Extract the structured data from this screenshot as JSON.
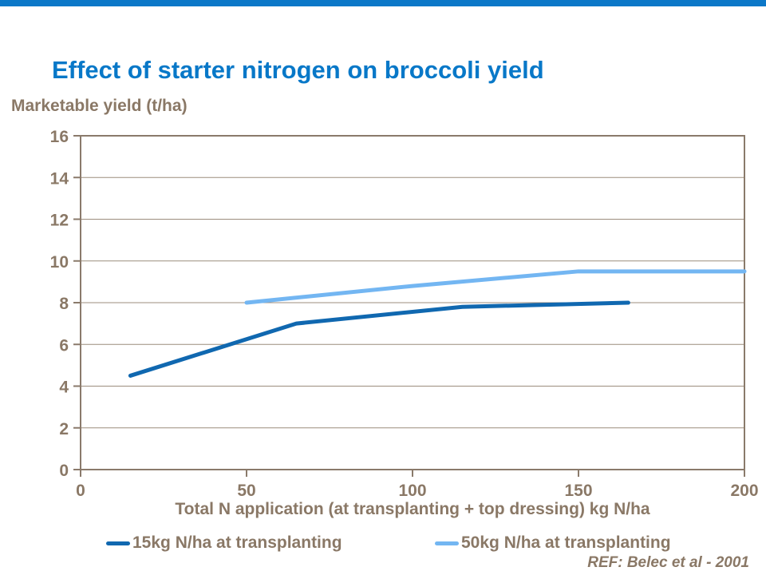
{
  "page": {
    "background": "#ffffff",
    "top_bar_color": "#0c78c8"
  },
  "colors": {
    "title_blue": "#0878c8",
    "axis": "#8a7a6b",
    "grid": "#9c8d7d",
    "text_brown": "#8a7866",
    "series_dark_blue": "#1068b0",
    "series_light_blue": "#73b6f2"
  },
  "title": {
    "text": "Effect of starter nitrogen on broccoli yield"
  },
  "ref_note": {
    "text": "REF: Belec et al - 2001"
  },
  "chart_data": {
    "type": "line",
    "title": "Effect of starter nitrogen on broccoli yield",
    "ylabel": "Marketable yield (t/ha)",
    "xlabel": "Total N application (at transplanting + top dressing) kg N/ha",
    "xlim": [
      0,
      200
    ],
    "ylim": [
      0,
      16
    ],
    "x_ticks": [
      0,
      50,
      100,
      150,
      200
    ],
    "y_ticks": [
      0,
      2,
      4,
      6,
      8,
      10,
      12,
      14,
      16
    ],
    "grid": "horizontal",
    "legend_position": "bottom",
    "series": [
      {
        "name": "15kg N/ha at transplanting",
        "color": "#1068b0",
        "x": [
          15,
          65,
          115,
          165
        ],
        "y": [
          4.5,
          7.0,
          7.8,
          8.0
        ]
      },
      {
        "name": "50kg N/ha at transplanting",
        "color": "#73b6f2",
        "x": [
          50,
          100,
          150,
          200
        ],
        "y": [
          8.0,
          8.8,
          9.5,
          9.5
        ]
      }
    ]
  }
}
